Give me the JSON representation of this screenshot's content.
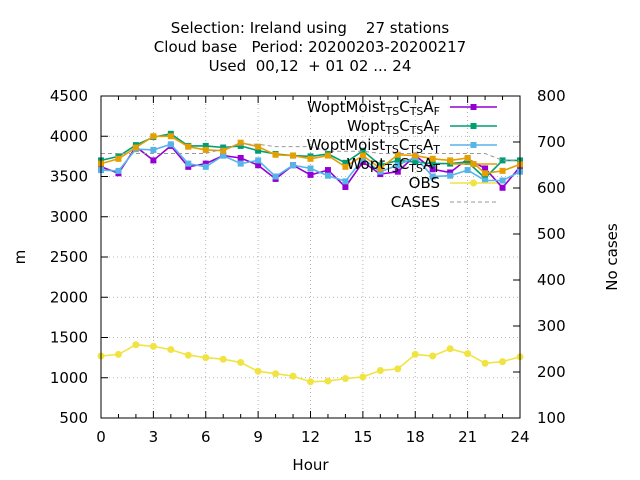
{
  "chart_data": {
    "type": "line",
    "title_lines": [
      "Selection: Ireland using    27 stations",
      "Cloud base   Period: 20200203-20200217",
      "Used  00,12  + 01 02 ... 24"
    ],
    "xlabel": "Hour",
    "ylabel": "m",
    "y2label": "No cases",
    "xlim": [
      0,
      24
    ],
    "ylim": [
      500,
      4500
    ],
    "y2lim": [
      100,
      800
    ],
    "xticks": [
      "0",
      "3",
      "6",
      "9",
      "12",
      "15",
      "18",
      "21",
      "24"
    ],
    "yticks": [
      "500",
      "1000",
      "1500",
      "2000",
      "2500",
      "3000",
      "3500",
      "4000",
      "4500"
    ],
    "y2ticks": [
      "100",
      "200",
      "300",
      "400",
      "500",
      "600",
      "700",
      "800"
    ],
    "grid": true,
    "legend_position": "top-right",
    "x": [
      0,
      1,
      2,
      3,
      4,
      5,
      6,
      7,
      8,
      9,
      10,
      11,
      12,
      13,
      14,
      15,
      16,
      17,
      18,
      19,
      20,
      21,
      22,
      23,
      24
    ],
    "series": [
      {
        "name": "WoptMoist",
        "sub1": "TS",
        "mid": "C",
        "sub2": "TS",
        "end": "A",
        "sub3": "F",
        "color": "#9400d3",
        "marker": "square",
        "dash": false,
        "axis": "y1",
        "values": [
          3620,
          3540,
          3870,
          3700,
          3880,
          3620,
          3660,
          3760,
          3730,
          3640,
          3470,
          3640,
          3520,
          3580,
          3370,
          3680,
          3530,
          3560,
          3760,
          3590,
          3550,
          3720,
          3600,
          3360,
          3620
        ]
      },
      {
        "name": "Wopt",
        "sub1": "TS",
        "mid": "C",
        "sub2": "TS",
        "end": "A",
        "sub3": "F",
        "color": "#009e73",
        "marker": "square",
        "dash": false,
        "axis": "y1",
        "values": [
          3700,
          3750,
          3890,
          3990,
          4030,
          3880,
          3880,
          3860,
          3880,
          3820,
          3780,
          3760,
          3750,
          3780,
          3670,
          3820,
          3640,
          3700,
          3680,
          3660,
          3660,
          3680,
          3480,
          3700,
          3700
        ]
      },
      {
        "name": "WoptMoist",
        "sub1": "TS",
        "mid": "C",
        "sub2": "TS",
        "end": "A",
        "sub3": "T",
        "color": "#56b4e9",
        "marker": "square",
        "dash": false,
        "axis": "y1",
        "values": [
          3580,
          3570,
          3840,
          3830,
          3900,
          3660,
          3620,
          3760,
          3660,
          3700,
          3500,
          3640,
          3600,
          3510,
          3440,
          3720,
          3560,
          3640,
          3740,
          3500,
          3510,
          3580,
          3450,
          3450,
          3560
        ]
      },
      {
        "name": "Wopt",
        "sub1": "TS",
        "mid": "C",
        "sub2": "TS",
        "end": "A",
        "sub3": "T",
        "color": "#e69f00",
        "marker": "square",
        "dash": false,
        "axis": "y1",
        "values": [
          3660,
          3720,
          3860,
          4000,
          4000,
          3870,
          3830,
          3820,
          3920,
          3870,
          3770,
          3760,
          3720,
          3760,
          3620,
          3760,
          3600,
          3770,
          3760,
          3720,
          3700,
          3730,
          3540,
          3570,
          3650
        ]
      },
      {
        "name": "OBS",
        "color": "#f0e442",
        "marker": "circle",
        "dash": false,
        "axis": "y1",
        "values": [
          1270,
          1290,
          1410,
          1390,
          1350,
          1280,
          1250,
          1230,
          1190,
          1080,
          1050,
          1020,
          950,
          960,
          990,
          1010,
          1090,
          1110,
          1290,
          1270,
          1360,
          1300,
          1180,
          1200,
          1260
        ]
      },
      {
        "name": "CASES",
        "color": "#999999",
        "marker": "none",
        "dash": true,
        "axis": "y2",
        "values": [
          675,
          675,
          675,
          675,
          675,
          675,
          675,
          685,
          695,
          695,
          690,
          690,
          690,
          680,
          680,
          680,
          675,
          675,
          675,
          675,
          675,
          675,
          675,
          660,
          660
        ]
      }
    ]
  }
}
